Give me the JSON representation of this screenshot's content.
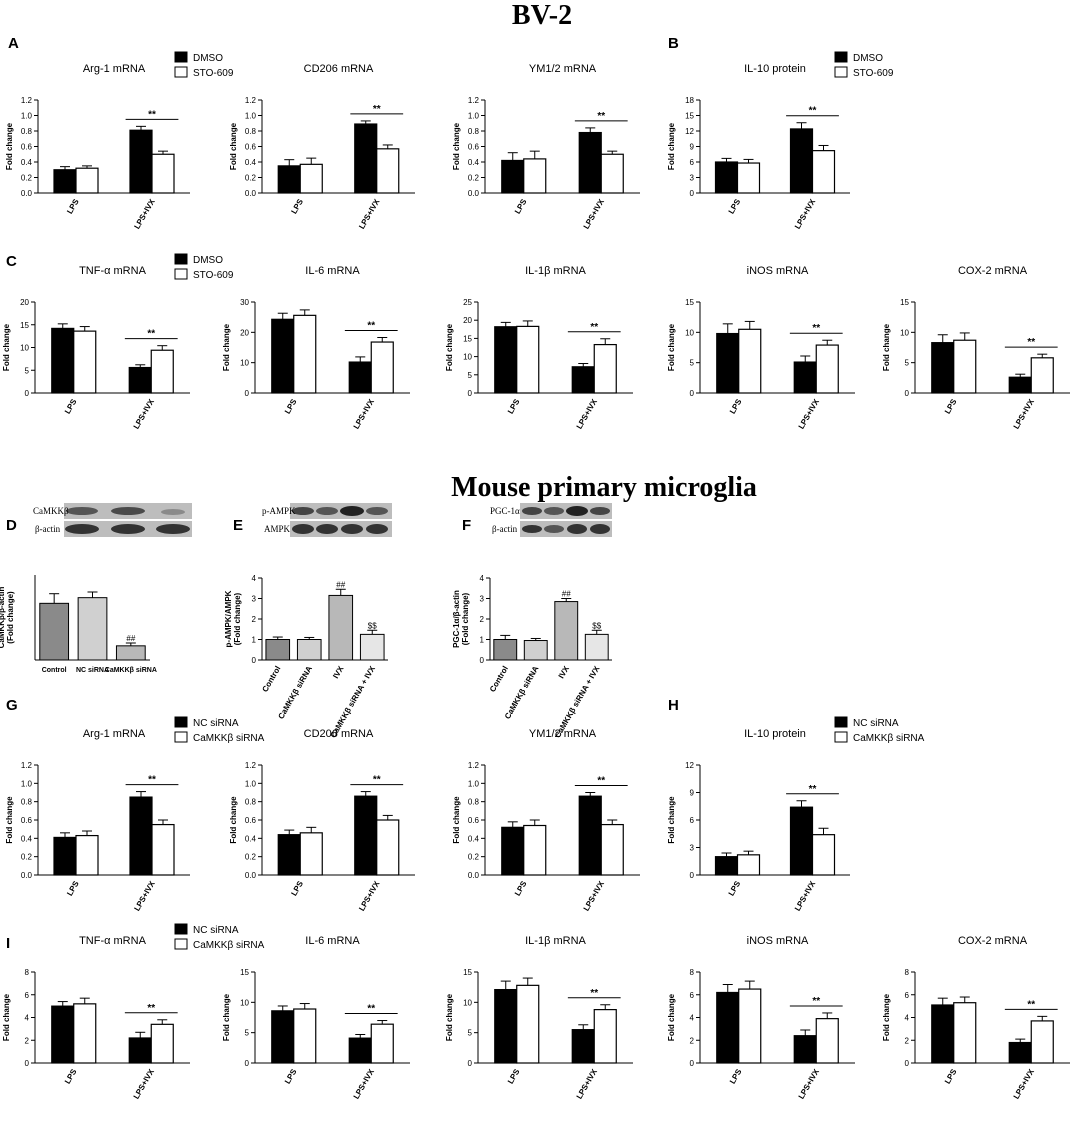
{
  "headings": [
    "BV-2",
    "Mouse primary microglia"
  ],
  "panel_letters": [
    "A",
    "B",
    "C",
    "D",
    "E",
    "F",
    "G",
    "H",
    "I"
  ],
  "blots": [
    {
      "labels": [
        "CaMKKβ",
        "β-actin"
      ]
    },
    {
      "labels": [
        "p-AMPK",
        "AMPK"
      ]
    },
    {
      "labels": [
        "PGC-1α",
        "β-actin"
      ]
    }
  ],
  "chart_data": [
    {
      "type": "bar",
      "title": "Arg-1 mRNA",
      "ylabel": "Fold change",
      "categories": [
        "LPS",
        "LPS+IVX"
      ],
      "legend": "top-right",
      "series": [
        {
          "name": "DMSO",
          "color": "#000000",
          "values": [
            0.3,
            0.81
          ],
          "errors": [
            0.04,
            0.05
          ]
        },
        {
          "name": "STO-609",
          "color": "#ffffff",
          "values": [
            0.32,
            0.5
          ],
          "errors": [
            0.03,
            0.04
          ]
        }
      ],
      "ylim": [
        0,
        1.2
      ],
      "yticks": [
        {
          "value": 0,
          "label": "0.0"
        },
        0.2,
        0.4,
        0.6,
        0.8,
        {
          "value": 1,
          "label": "1.0"
        },
        1.2
      ],
      "annotation": "**"
    },
    {
      "type": "bar",
      "title": "CD206 mRNA",
      "ylabel": "Fold change",
      "categories": [
        "LPS",
        "LPS+IVX"
      ],
      "series": [
        {
          "color": "#000000",
          "values": [
            0.35,
            0.89
          ],
          "errors": [
            0.08,
            0.04
          ]
        },
        {
          "color": "#ffffff",
          "values": [
            0.37,
            0.57
          ],
          "errors": [
            0.08,
            0.05
          ]
        }
      ],
      "ylim": [
        0,
        1.2
      ],
      "yticks": [
        {
          "value": 0,
          "label": "0.0"
        },
        0.2,
        0.4,
        0.6,
        0.8,
        {
          "value": 1,
          "label": "1.0"
        },
        1.2
      ],
      "annotation": "**"
    },
    {
      "type": "bar",
      "title": "YM1/2 mRNA",
      "ylabel": "Fold change",
      "categories": [
        "LPS",
        "LPS+IVX"
      ],
      "series": [
        {
          "color": "#000000",
          "values": [
            0.42,
            0.78
          ],
          "errors": [
            0.1,
            0.06
          ]
        },
        {
          "color": "#ffffff",
          "values": [
            0.44,
            0.5
          ],
          "errors": [
            0.1,
            0.04
          ]
        }
      ],
      "ylim": [
        0,
        1.2
      ],
      "yticks": [
        {
          "value": 0,
          "label": "0.0"
        },
        0.2,
        0.4,
        0.6,
        0.8,
        {
          "value": 1,
          "label": "1.0"
        },
        1.2
      ],
      "annotation": "**"
    },
    {
      "type": "bar",
      "title": "IL-10 protein",
      "ylabel": "Fold change",
      "categories": [
        "LPS",
        "LPS+IVX"
      ],
      "legend": "top-right",
      "series": [
        {
          "name": "DMSO",
          "color": "#000000",
          "values": [
            6.0,
            12.4
          ],
          "errors": [
            0.7,
            1.2
          ]
        },
        {
          "name": "STO-609",
          "color": "#ffffff",
          "values": [
            5.8,
            8.2
          ],
          "errors": [
            0.7,
            1.0
          ]
        }
      ],
      "ylim": [
        0,
        18
      ],
      "yticks": [
        0,
        3,
        6,
        9,
        12,
        15,
        18
      ],
      "annotation": "**"
    },
    {
      "type": "bar",
      "title": "TNF-α mRNA",
      "ylabel": "Fold change",
      "categories": [
        "LPS",
        "LPS+IVX"
      ],
      "legend": "top-right",
      "series": [
        {
          "name": "DMSO",
          "color": "#000000",
          "values": [
            14.2,
            5.6
          ],
          "errors": [
            1.0,
            0.6
          ]
        },
        {
          "name": "STO-609",
          "color": "#ffffff",
          "values": [
            13.6,
            9.4
          ],
          "errors": [
            1.0,
            1.0
          ]
        }
      ],
      "ylim": [
        0,
        20
      ],
      "yticks": [
        0,
        5,
        10,
        15,
        20
      ],
      "annotation": "**"
    },
    {
      "type": "bar",
      "title": "IL-6 mRNA",
      "ylabel": "Fold change",
      "categories": [
        "LPS",
        "LPS+IVX"
      ],
      "series": [
        {
          "color": "#000000",
          "values": [
            24.3,
            10.2
          ],
          "errors": [
            2.0,
            1.7
          ]
        },
        {
          "color": "#ffffff",
          "values": [
            25.6,
            16.8
          ],
          "errors": [
            1.8,
            1.5
          ]
        }
      ],
      "ylim": [
        0,
        30
      ],
      "yticks": [
        0,
        10,
        20,
        30
      ],
      "annotation": "**"
    },
    {
      "type": "bar",
      "title": "IL-1β  mRNA",
      "ylabel": "Fold change",
      "categories": [
        "LPS",
        "LPS+IVX"
      ],
      "series": [
        {
          "color": "#000000",
          "values": [
            18.2,
            7.2
          ],
          "errors": [
            1.2,
            0.9
          ]
        },
        {
          "color": "#ffffff",
          "values": [
            18.3,
            13.3
          ],
          "errors": [
            1.5,
            1.6
          ]
        }
      ],
      "ylim": [
        0,
        25
      ],
      "yticks": [
        0,
        5,
        10,
        15,
        20,
        25
      ],
      "annotation": "**"
    },
    {
      "type": "bar",
      "title": "iNOS mRNA",
      "ylabel": "Fold change",
      "categories": [
        "LPS",
        "LPS+IVX"
      ],
      "series": [
        {
          "color": "#000000",
          "values": [
            9.8,
            5.1
          ],
          "errors": [
            1.6,
            1.0
          ]
        },
        {
          "color": "#ffffff",
          "values": [
            10.5,
            7.9
          ],
          "errors": [
            1.3,
            0.8
          ]
        }
      ],
      "ylim": [
        0,
        15
      ],
      "yticks": [
        0,
        5,
        10,
        15
      ],
      "annotation": "**"
    },
    {
      "type": "bar",
      "title": "COX-2 mRNA",
      "ylabel": "Fold change",
      "categories": [
        "LPS",
        "LPS+IVX"
      ],
      "series": [
        {
          "color": "#000000",
          "values": [
            8.3,
            2.6
          ],
          "errors": [
            1.3,
            0.5
          ]
        },
        {
          "color": "#ffffff",
          "values": [
            8.7,
            5.8
          ],
          "errors": [
            1.2,
            0.6
          ]
        }
      ],
      "ylim": [
        0,
        15
      ],
      "yticks": [
        0,
        5,
        10,
        15
      ],
      "annotation": "**"
    },
    {
      "type": "bar",
      "ylabel": [
        "CaMKKβ/β-actin",
        "(Fold change)"
      ],
      "categories": [
        "Control",
        "NC siRNA",
        "CaMKKβ siRNA"
      ],
      "values": [
        1.0,
        1.1,
        0.25
      ],
      "errors": [
        0.17,
        0.1,
        0.05
      ],
      "colors": [
        "#8a8a8a",
        "#d0d0d0",
        "#b8b8b8"
      ],
      "markers": [
        null,
        null,
        "##"
      ],
      "ylim": [
        0,
        1.5
      ]
    },
    {
      "type": "bar",
      "ylabel": [
        "p-AMPK/AMPK",
        "(Fold change)"
      ],
      "categories": [
        "Control",
        "CaMKKβ siRNA",
        "IVX",
        "CaMKKβ siRNA + IVX"
      ],
      "values": [
        1.0,
        1.0,
        3.15,
        1.25
      ],
      "errors": [
        0.12,
        0.1,
        0.3,
        0.2
      ],
      "colors": [
        "#8a8a8a",
        "#d0d0d0",
        "#b8b8b8",
        "#e6e6e6"
      ],
      "markers": [
        null,
        null,
        "##",
        "$$"
      ],
      "ylim": [
        0,
        4
      ],
      "yticks": [
        0,
        1,
        2,
        3,
        4
      ]
    },
    {
      "type": "bar",
      "ylabel": [
        "PGC-1α/β-actin",
        "(Fold change)"
      ],
      "categories": [
        "Control",
        "CaMKKβ siRNA",
        "IVX",
        "CaMKKβ siRNA + IVX"
      ],
      "values": [
        1.0,
        0.95,
        2.85,
        1.25
      ],
      "errors": [
        0.2,
        0.1,
        0.15,
        0.2
      ],
      "colors": [
        "#8a8a8a",
        "#d0d0d0",
        "#b8b8b8",
        "#e6e6e6"
      ],
      "markers": [
        null,
        null,
        "##",
        "$$"
      ],
      "ylim": [
        0,
        4
      ],
      "yticks": [
        0,
        1,
        2,
        3,
        4
      ]
    },
    {
      "type": "bar",
      "title": "Arg-1 mRNA",
      "ylabel": "Fold change",
      "categories": [
        "LPS",
        "LPS+IVX"
      ],
      "legend": "top-right",
      "series": [
        {
          "name": "NC siRNA",
          "color": "#000000",
          "values": [
            0.41,
            0.85
          ],
          "errors": [
            0.05,
            0.06
          ]
        },
        {
          "name": "CaMKKβ siRNA",
          "color": "#ffffff",
          "values": [
            0.43,
            0.55
          ],
          "errors": [
            0.05,
            0.05
          ]
        }
      ],
      "ylim": [
        0,
        1.2
      ],
      "yticks": [
        {
          "value": 0,
          "label": "0.0"
        },
        0.2,
        0.4,
        0.6,
        0.8,
        {
          "value": 1,
          "label": "1.0"
        },
        1.2
      ],
      "annotation": "**"
    },
    {
      "type": "bar",
      "title": "CD206 mRNA",
      "ylabel": "Fold change",
      "categories": [
        "LPS",
        "LPS+IVX"
      ],
      "series": [
        {
          "color": "#000000",
          "values": [
            0.44,
            0.86
          ],
          "errors": [
            0.05,
            0.05
          ]
        },
        {
          "color": "#ffffff",
          "values": [
            0.46,
            0.6
          ],
          "errors": [
            0.06,
            0.05
          ]
        }
      ],
      "ylim": [
        0,
        1.2
      ],
      "yticks": [
        {
          "value": 0,
          "label": "0.0"
        },
        0.2,
        0.4,
        0.6,
        0.8,
        {
          "value": 1,
          "label": "1.0"
        },
        1.2
      ],
      "annotation": "**"
    },
    {
      "type": "bar",
      "title": "YM1/2 mRNA",
      "ylabel": "Fold change",
      "categories": [
        "LPS",
        "LPS+IVX"
      ],
      "series": [
        {
          "color": "#000000",
          "values": [
            0.52,
            0.86
          ],
          "errors": [
            0.06,
            0.04
          ]
        },
        {
          "color": "#ffffff",
          "values": [
            0.54,
            0.55
          ],
          "errors": [
            0.06,
            0.05
          ]
        }
      ],
      "ylim": [
        0,
        1.2
      ],
      "yticks": [
        {
          "value": 0,
          "label": "0.0"
        },
        0.2,
        0.4,
        0.6,
        0.8,
        {
          "value": 1,
          "label": "1.0"
        },
        1.2
      ],
      "annotation": "**"
    },
    {
      "type": "bar",
      "title": "IL-10 protein",
      "ylabel": "Fold change",
      "categories": [
        "LPS",
        "LPS+IVX"
      ],
      "legend": "top-right",
      "series": [
        {
          "name": "NC siRNA",
          "color": "#000000",
          "values": [
            2.0,
            7.4
          ],
          "errors": [
            0.4,
            0.7
          ]
        },
        {
          "name": "CaMKKβ siRNA",
          "color": "#ffffff",
          "values": [
            2.2,
            4.4
          ],
          "errors": [
            0.4,
            0.7
          ]
        }
      ],
      "ylim": [
        0,
        12
      ],
      "yticks": [
        0,
        3,
        6,
        9,
        12
      ],
      "annotation": "**"
    },
    {
      "type": "bar",
      "title": "TNF-α mRNA",
      "ylabel": "Fold change",
      "categories": [
        "LPS",
        "LPS+IVX"
      ],
      "legend": "top-right",
      "series": [
        {
          "name": "NC siRNA",
          "color": "#000000",
          "values": [
            5.0,
            2.2
          ],
          "errors": [
            0.4,
            0.5
          ]
        },
        {
          "name": "CaMKKβ siRNA",
          "color": "#ffffff",
          "values": [
            5.2,
            3.4
          ],
          "errors": [
            0.5,
            0.4
          ]
        }
      ],
      "ylim": [
        0,
        8
      ],
      "yticks": [
        0,
        2,
        4,
        6,
        8
      ],
      "annotation": "**"
    },
    {
      "type": "bar",
      "title": "IL-6 mRNA",
      "ylabel": "Fold change",
      "categories": [
        "LPS",
        "LPS+IVX"
      ],
      "series": [
        {
          "color": "#000000",
          "values": [
            8.6,
            4.1
          ],
          "errors": [
            0.8,
            0.6
          ]
        },
        {
          "color": "#ffffff",
          "values": [
            8.9,
            6.4
          ],
          "errors": [
            0.9,
            0.6
          ]
        }
      ],
      "ylim": [
        0,
        15
      ],
      "yticks": [
        0,
        5,
        10,
        15
      ],
      "annotation": "**"
    },
    {
      "type": "bar",
      "title": "IL-1β  mRNA",
      "ylabel": "Fold change",
      "categories": [
        "LPS",
        "LPS+IVX"
      ],
      "series": [
        {
          "color": "#000000",
          "values": [
            12.1,
            5.5
          ],
          "errors": [
            1.4,
            0.8
          ]
        },
        {
          "color": "#ffffff",
          "values": [
            12.8,
            8.8
          ],
          "errors": [
            1.2,
            0.8
          ]
        }
      ],
      "ylim": [
        0,
        15
      ],
      "yticks": [
        0,
        5,
        10,
        15
      ],
      "annotation": "**"
    },
    {
      "type": "bar",
      "title": "iNOS mRNA",
      "ylabel": "Fold change",
      "categories": [
        "LPS",
        "LPS+IVX"
      ],
      "series": [
        {
          "color": "#000000",
          "values": [
            6.2,
            2.4
          ],
          "errors": [
            0.7,
            0.5
          ]
        },
        {
          "color": "#ffffff",
          "values": [
            6.5,
            3.9
          ],
          "errors": [
            0.7,
            0.5
          ]
        }
      ],
      "ylim": [
        0,
        8
      ],
      "yticks": [
        0,
        2,
        4,
        6,
        8
      ],
      "annotation": "**"
    },
    {
      "type": "bar",
      "title": "COX-2 mRNA",
      "ylabel": "Fold change",
      "categories": [
        "LPS",
        "LPS+IVX"
      ],
      "series": [
        {
          "color": "#000000",
          "values": [
            5.1,
            1.8
          ],
          "errors": [
            0.6,
            0.3
          ]
        },
        {
          "color": "#ffffff",
          "values": [
            5.3,
            3.7
          ],
          "errors": [
            0.5,
            0.4
          ]
        }
      ],
      "ylim": [
        0,
        8
      ],
      "yticks": [
        0,
        2,
        4,
        6,
        8
      ],
      "annotation": "**"
    }
  ]
}
